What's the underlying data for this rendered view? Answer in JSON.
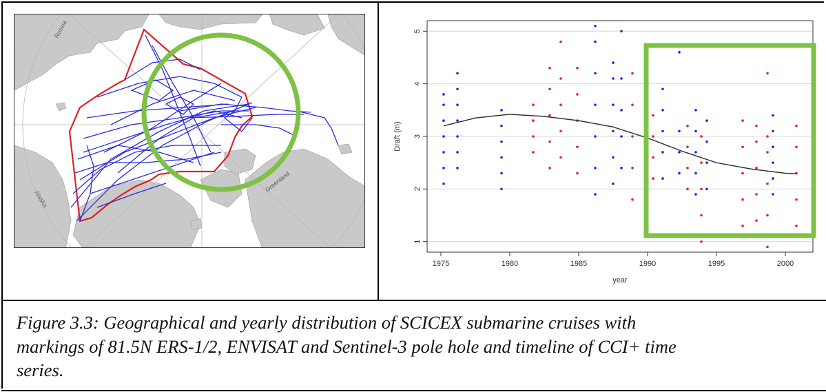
{
  "map": {
    "labels": {
      "russia": "Russia",
      "alaska": "Alaska",
      "greenland": "Greenland"
    },
    "colors": {
      "land": "#c9c9c9",
      "tracks": "#2a2adf",
      "hole_boundary": "#dd2222",
      "circle": "#7dc243"
    }
  },
  "chart_data": {
    "type": "scatter",
    "xlabel": "year",
    "ylabel": "Draft (m)",
    "xlim": [
      1974.0,
      2002.0
    ],
    "ylim": [
      0.8,
      5.2
    ],
    "xticks": [
      1975,
      1980,
      1985,
      1990,
      1995,
      2000
    ],
    "yticks": [
      1,
      2,
      3,
      4,
      5
    ],
    "grid": true,
    "series": [
      {
        "color": "#2222dd",
        "points": [
          [
            1975.2,
            2.1
          ],
          [
            1975.2,
            2.4
          ],
          [
            1975.2,
            2.7
          ],
          [
            1975.2,
            3.0
          ],
          [
            1975.2,
            3.3
          ],
          [
            1975.2,
            3.6
          ],
          [
            1975.2,
            3.8
          ],
          [
            1976.2,
            2.4
          ],
          [
            1976.2,
            2.7
          ],
          [
            1976.2,
            3.0
          ],
          [
            1976.2,
            3.3
          ],
          [
            1976.2,
            3.6
          ],
          [
            1976.2,
            3.9
          ],
          [
            1976.2,
            4.2
          ],
          [
            1979.4,
            2.0
          ],
          [
            1979.4,
            2.3
          ],
          [
            1979.4,
            2.6
          ],
          [
            1979.4,
            2.9
          ],
          [
            1979.4,
            3.2
          ],
          [
            1979.4,
            3.5
          ],
          [
            1986.2,
            1.9
          ],
          [
            1986.2,
            2.4
          ],
          [
            1986.2,
            3.0
          ],
          [
            1986.2,
            3.6
          ],
          [
            1986.2,
            4.2
          ],
          [
            1986.2,
            4.8
          ],
          [
            1986.2,
            5.1
          ],
          [
            1987.5,
            2.1
          ],
          [
            1987.5,
            2.6
          ],
          [
            1987.5,
            3.1
          ],
          [
            1987.5,
            3.6
          ],
          [
            1987.5,
            4.1
          ],
          [
            1987.5,
            4.4
          ],
          [
            1988.1,
            2.4
          ],
          [
            1988.1,
            3.0
          ],
          [
            1988.1,
            3.5
          ],
          [
            1988.1,
            4.1
          ],
          [
            1988.1,
            5.0
          ],
          [
            1991.1,
            2.2
          ],
          [
            1991.1,
            2.7
          ],
          [
            1991.1,
            3.1
          ],
          [
            1991.1,
            3.5
          ],
          [
            1991.1,
            3.9
          ],
          [
            1992.3,
            2.3
          ],
          [
            1992.3,
            2.7
          ],
          [
            1992.3,
            3.1
          ],
          [
            1992.3,
            4.6
          ],
          [
            1993.5,
            1.9
          ],
          [
            1993.5,
            2.3
          ],
          [
            1993.5,
            2.7
          ],
          [
            1993.5,
            3.1
          ],
          [
            1993.5,
            3.5
          ],
          [
            1994.3,
            2.0
          ],
          [
            1994.3,
            2.5
          ],
          [
            1994.3,
            2.9
          ],
          [
            1994.3,
            3.3
          ],
          [
            1999.1,
            1.9
          ],
          [
            1999.1,
            2.2
          ],
          [
            1999.1,
            2.5
          ],
          [
            1999.1,
            2.8
          ],
          [
            1999.1,
            3.1
          ],
          [
            1999.1,
            3.4
          ]
        ]
      },
      {
        "color": "#dd2222",
        "points": [
          [
            1981.7,
            2.7
          ],
          [
            1981.7,
            3.0
          ],
          [
            1981.7,
            3.3
          ],
          [
            1981.7,
            3.6
          ],
          [
            1982.9,
            2.4
          ],
          [
            1982.9,
            2.9
          ],
          [
            1982.9,
            3.4
          ],
          [
            1982.9,
            3.9
          ],
          [
            1982.9,
            4.3
          ],
          [
            1983.7,
            2.6
          ],
          [
            1983.7,
            3.1
          ],
          [
            1983.7,
            3.6
          ],
          [
            1983.7,
            4.1
          ],
          [
            1983.7,
            4.8
          ],
          [
            1984.9,
            2.3
          ],
          [
            1984.9,
            2.8
          ],
          [
            1984.9,
            3.3
          ],
          [
            1984.9,
            3.8
          ],
          [
            1984.9,
            4.3
          ],
          [
            1988.9,
            1.8
          ],
          [
            1988.9,
            2.4
          ],
          [
            1988.9,
            3.0
          ],
          [
            1988.9,
            3.6
          ],
          [
            1988.9,
            4.2
          ],
          [
            1989.9,
            2.2
          ],
          [
            1989.9,
            2.6
          ],
          [
            1989.9,
            3.0
          ],
          [
            1989.9,
            3.4
          ],
          [
            1989.9,
            3.8
          ],
          [
            1989.9,
            4.1
          ],
          [
            1990.4,
            2.2
          ],
          [
            1990.4,
            2.6
          ],
          [
            1990.4,
            3.0
          ],
          [
            1990.4,
            3.4
          ],
          [
            1992.9,
            2.0
          ],
          [
            1992.9,
            2.4
          ],
          [
            1992.9,
            2.8
          ],
          [
            1992.9,
            3.2
          ],
          [
            1993.9,
            1.0
          ],
          [
            1993.9,
            1.5
          ],
          [
            1993.9,
            2.0
          ],
          [
            1993.9,
            2.5
          ],
          [
            1993.9,
            3.0
          ],
          [
            1996.9,
            1.3
          ],
          [
            1996.9,
            1.8
          ],
          [
            1996.9,
            2.3
          ],
          [
            1996.9,
            2.8
          ],
          [
            1996.9,
            3.3
          ],
          [
            1997.9,
            1.4
          ],
          [
            1997.9,
            1.9
          ],
          [
            1997.9,
            2.4
          ],
          [
            1997.9,
            2.9
          ],
          [
            1997.9,
            3.2
          ],
          [
            1998.7,
            0.9
          ],
          [
            1998.7,
            1.5
          ],
          [
            1998.7,
            2.1
          ],
          [
            1998.7,
            2.7
          ],
          [
            1998.7,
            3.0
          ],
          [
            1998.7,
            4.2
          ],
          [
            2000.8,
            1.3
          ],
          [
            2000.8,
            1.8
          ],
          [
            2000.8,
            2.3
          ],
          [
            2000.8,
            2.8
          ],
          [
            2000.8,
            3.2
          ]
        ]
      },
      {
        "color": "#333333",
        "points": [
          [
            1975.2,
            3.2
          ],
          [
            1977.5,
            3.35
          ],
          [
            1980,
            3.42
          ],
          [
            1982.5,
            3.38
          ],
          [
            1985,
            3.3
          ],
          [
            1987.5,
            3.18
          ],
          [
            1990,
            2.97
          ],
          [
            1992.5,
            2.72
          ],
          [
            1995,
            2.5
          ],
          [
            1997.5,
            2.38
          ],
          [
            2000,
            2.3
          ],
          [
            2000.8,
            2.29
          ]
        ]
      }
    ]
  },
  "caption": {
    "line1": "Figure 3.3: Geographical and yearly distribution of SCICEX submarine cruises with",
    "line2": "markings of 81.5N ERS-1/2, ENVISAT and Sentinel-3 pole hole and timeline of CCI+ time",
    "line3": "series."
  }
}
